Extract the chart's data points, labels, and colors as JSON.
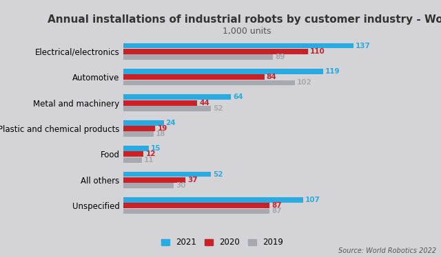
{
  "title": "Annual installations of industrial robots by customer industry - World",
  "subtitle": "1,000 units",
  "source": "Source: World Robotics 2022",
  "categories": [
    "Electrical/electronics",
    "Automotive",
    "Metal and machinery",
    "Plastic and chemical products",
    "Food",
    "All others",
    "Unspecified"
  ],
  "series": {
    "2021": [
      137,
      119,
      64,
      24,
      15,
      52,
      107
    ],
    "2020": [
      110,
      84,
      44,
      19,
      12,
      37,
      87
    ],
    "2019": [
      89,
      102,
      52,
      18,
      11,
      30,
      87
    ]
  },
  "colors": {
    "2021": "#29ABE2",
    "2020": "#CC2027",
    "2019": "#A8A8B0"
  },
  "bar_height": 0.22,
  "background_color_outer": "#D4D4D8",
  "xlim": [
    0,
    155
  ],
  "legend_labels": [
    "2021",
    "2020",
    "2019"
  ],
  "title_fontsize": 11,
  "subtitle_fontsize": 9,
  "value_fontsize": 7.5,
  "ytick_fontsize": 8.5
}
